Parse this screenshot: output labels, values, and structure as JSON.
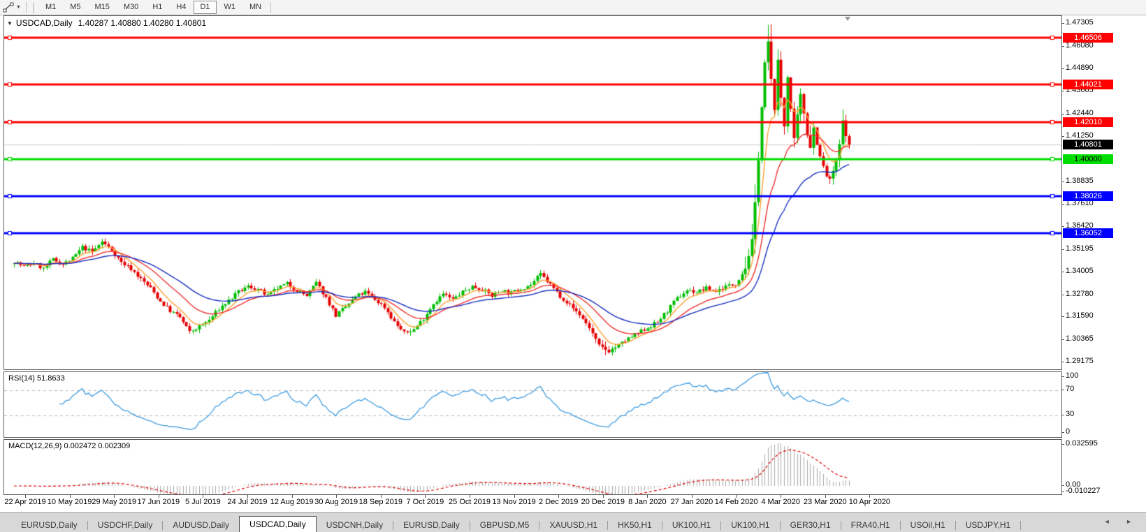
{
  "toolbar": {
    "timeframes": [
      {
        "label": "M1",
        "active": false
      },
      {
        "label": "M5",
        "active": false
      },
      {
        "label": "M15",
        "active": false
      },
      {
        "label": "M30",
        "active": false
      },
      {
        "label": "H1",
        "active": false
      },
      {
        "label": "H4",
        "active": false
      },
      {
        "label": "D1",
        "active": true
      },
      {
        "label": "W1",
        "active": false
      },
      {
        "label": "MN",
        "active": false
      }
    ],
    "caret_glyph": "▼"
  },
  "chart": {
    "title_symbol": "USDCAD,Daily",
    "quotes": "1.40287 1.40880 1.40280 1.40801",
    "collapse_glyph": "▼"
  },
  "chart_data": {
    "type": "candlestick",
    "symbol": "USDCAD",
    "timeframe": "Daily",
    "ohlc_quote": {
      "open": 1.40287,
      "high": 1.4088,
      "low": 1.4028,
      "close": 1.40801
    },
    "ylim": [
      1.29175,
      1.47305
    ],
    "price_axis_ticks": [
      "1.47305",
      "1.46080",
      "1.44890",
      "1.43665",
      "1.42440",
      "1.41250",
      "1.38835",
      "1.37610",
      "1.36420",
      "1.35195",
      "1.34005",
      "1.32780",
      "1.31590",
      "1.30365",
      "1.29175"
    ],
    "levels": [
      {
        "label": "1.46506",
        "value": 1.46506,
        "color": "#ff0000",
        "text": "#ffffff",
        "kind": "resistance"
      },
      {
        "label": "1.44021",
        "value": 1.44021,
        "color": "#ff0000",
        "text": "#ffffff",
        "kind": "resistance"
      },
      {
        "label": "1.42010",
        "value": 1.4201,
        "color": "#ff0000",
        "text": "#ffffff",
        "kind": "resistance"
      },
      {
        "label": "1.40000",
        "value": 1.4,
        "color": "#00dd00",
        "text": "#000000",
        "kind": "support"
      },
      {
        "label": "1.38026",
        "value": 1.38026,
        "color": "#0000ff",
        "text": "#ffffff",
        "kind": "support"
      },
      {
        "label": "1.36052",
        "value": 1.36052,
        "color": "#0000ff",
        "text": "#ffffff",
        "kind": "support"
      }
    ],
    "current_price": {
      "label": "1.40801",
      "value": 1.40801,
      "line_color": "#c9c9c9",
      "tag_bg": "#000000",
      "tag_text": "#ffffff"
    },
    "candles": {
      "count": 258,
      "bull_color": "#00be00",
      "bear_color": "#e60000",
      "close_path": [
        [
          0,
          1.3455
        ],
        [
          3,
          1.3425
        ],
        [
          6,
          1.3445
        ],
        [
          9,
          1.3415
        ],
        [
          12,
          1.3465
        ],
        [
          15,
          1.344
        ],
        [
          18,
          1.347
        ],
        [
          21,
          1.353
        ],
        [
          24,
          1.3505
        ],
        [
          27,
          1.356
        ],
        [
          30,
          1.3515
        ],
        [
          33,
          1.345
        ],
        [
          36,
          1.3415
        ],
        [
          39,
          1.336
        ],
        [
          42,
          1.331
        ],
        [
          45,
          1.324
        ],
        [
          48,
          1.319
        ],
        [
          51,
          1.3155
        ],
        [
          54,
          1.3075
        ],
        [
          57,
          1.3105
        ],
        [
          60,
          1.314
        ],
        [
          63,
          1.32
        ],
        [
          66,
          1.3245
        ],
        [
          69,
          1.329
        ],
        [
          72,
          1.332
        ],
        [
          75,
          1.3305
        ],
        [
          78,
          1.327
        ],
        [
          81,
          1.331
        ],
        [
          84,
          1.3335
        ],
        [
          87,
          1.33
        ],
        [
          90,
          1.327
        ],
        [
          93,
          1.334
        ],
        [
          96,
          1.326
        ],
        [
          99,
          1.3165
        ],
        [
          102,
          1.321
        ],
        [
          105,
          1.3265
        ],
        [
          108,
          1.329
        ],
        [
          111,
          1.325
        ],
        [
          114,
          1.321
        ],
        [
          117,
          1.313
        ],
        [
          120,
          1.307
        ],
        [
          123,
          1.309
        ],
        [
          126,
          1.315
        ],
        [
          129,
          1.323
        ],
        [
          132,
          1.328
        ],
        [
          135,
          1.325
        ],
        [
          138,
          1.329
        ],
        [
          141,
          1.332
        ],
        [
          144,
          1.3305
        ],
        [
          147,
          1.327
        ],
        [
          150,
          1.33
        ],
        [
          153,
          1.3285
        ],
        [
          156,
          1.331
        ],
        [
          159,
          1.333
        ],
        [
          162,
          1.3385
        ],
        [
          165,
          1.333
        ],
        [
          168,
          1.327
        ],
        [
          171,
          1.322
        ],
        [
          174,
          1.317
        ],
        [
          177,
          1.31
        ],
        [
          180,
          1.3
        ],
        [
          183,
          1.2975
        ],
        [
          186,
          1.3005
        ],
        [
          189,
          1.304
        ],
        [
          192,
          1.307
        ],
        [
          195,
          1.31
        ],
        [
          198,
          1.313
        ],
        [
          201,
          1.319
        ],
        [
          204,
          1.3255
        ],
        [
          207,
          1.33
        ],
        [
          210,
          1.329
        ],
        [
          213,
          1.331
        ],
        [
          216,
          1.3295
        ],
        [
          219,
          1.332
        ],
        [
          222,
          1.3335
        ],
        [
          225,
          1.342
        ],
        [
          227,
          1.356
        ],
        [
          228,
          1.376
        ],
        [
          229,
          1.401
        ],
        [
          230,
          1.428
        ],
        [
          231,
          1.451
        ],
        [
          232,
          1.463
        ],
        [
          233,
          1.442
        ],
        [
          234,
          1.428
        ],
        [
          235,
          1.452
        ],
        [
          236,
          1.433
        ],
        [
          237,
          1.418
        ],
        [
          238,
          1.445
        ],
        [
          239,
          1.427
        ],
        [
          240,
          1.41
        ],
        [
          241,
          1.423
        ],
        [
          242,
          1.434
        ],
        [
          243,
          1.425
        ],
        [
          244,
          1.414
        ],
        [
          245,
          1.407
        ],
        [
          246,
          1.417
        ],
        [
          247,
          1.409
        ],
        [
          248,
          1.401
        ],
        [
          249,
          1.396
        ],
        [
          250,
          1.391
        ],
        [
          251,
          1.3885
        ],
        [
          252,
          1.394
        ],
        [
          253,
          1.3985
        ],
        [
          254,
          1.408
        ],
        [
          255,
          1.42
        ],
        [
          256,
          1.414
        ],
        [
          257,
          1.40801
        ]
      ],
      "spike_highs": [
        [
          232,
          1.4672
        ],
        [
          255,
          1.4268
        ]
      ]
    },
    "moving_averages": [
      {
        "name": "fast-ma",
        "period": 7,
        "color": "#ffa133"
      },
      {
        "name": "mid-ma",
        "period": 18,
        "color": "#f03030"
      },
      {
        "name": "slow-ma",
        "period": 36,
        "color": "#1830c0"
      }
    ],
    "date_axis": {
      "labels": [
        "22 Apr 2019",
        "10 May 2019",
        "29 May 2019",
        "17 Jun 2019",
        "5 Jul 2019",
        "24 Jul 2019",
        "12 Aug 2019",
        "30 Aug 2019",
        "18 Sep 2019",
        "7 Oct 2019",
        "25 Oct 2019",
        "13 Nov 2019",
        "2 Dec 2019",
        "20 Dec 2019",
        "8 Jan 2020",
        "27 Jan 2020",
        "14 Feb 2020",
        "4 Mar 2020",
        "23 Mar 2020",
        "10 Apr 2020"
      ]
    },
    "rsi": {
      "label": "RSI(14) 51.8633",
      "period": 14,
      "value": 51.8633,
      "ticks": [
        "100",
        "70",
        "30",
        "0"
      ],
      "guide_levels": [
        70,
        30
      ],
      "line_color": "#3e9be0",
      "guide_color": "#b8b8b8"
    },
    "macd": {
      "label": "MACD(12,26,9) 0.002472 0.002309",
      "fast": 12,
      "slow": 26,
      "signal": 9,
      "values": [
        0.002472,
        0.002309
      ],
      "ticks": [
        "0.032595",
        "0.00",
        "-0.010227"
      ],
      "histogram_color": "#a8a8a8",
      "signal_color": "#e00000"
    }
  },
  "tabs": {
    "items": [
      "EURUSD,Daily",
      "USDCHF,Daily",
      "AUDUSD,Daily",
      "USDCAD,Daily",
      "USDCNH,Daily",
      "EURUSD,Daily",
      "GBPUSD,M5",
      "XAUUSD,H1",
      "HK50,H1",
      "UK100,H1",
      "UK100,H1",
      "GER30,H1",
      "FRA40,H1",
      "USOil,H1",
      "USDJPY,H1"
    ],
    "active_index": 3,
    "left_arrow": "◄",
    "right_arrow": "►"
  }
}
